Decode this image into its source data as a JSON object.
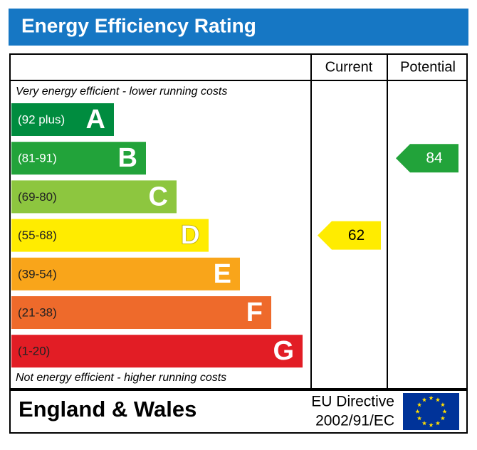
{
  "header": {
    "title": "Energy Efficiency Rating"
  },
  "columns": [
    "Current",
    "Potential"
  ],
  "top_note": "Very energy efficient - lower running costs",
  "bands": [
    {
      "range": "(92 plus)",
      "letter": "A",
      "color": "#008c3f"
    },
    {
      "range": "(81-91)",
      "letter": "B",
      "color": "#22a33a"
    },
    {
      "range": "(69-80)",
      "letter": "C",
      "color": "#8dc63f"
    },
    {
      "range": "(55-68)",
      "letter": "D",
      "color": "#ffec00"
    },
    {
      "range": "(39-54)",
      "letter": "E",
      "color": "#f9a51a"
    },
    {
      "range": "(21-38)",
      "letter": "F",
      "color": "#ee6a2b"
    },
    {
      "range": "(1-20)",
      "letter": "G",
      "color": "#e21d25"
    }
  ],
  "bottom_note": "Not energy efficient - higher running costs",
  "current": 62,
  "potential": 84,
  "footer": {
    "region": "England & Wales",
    "directive": [
      "EU Directive",
      "2002/91/EC"
    ]
  }
}
